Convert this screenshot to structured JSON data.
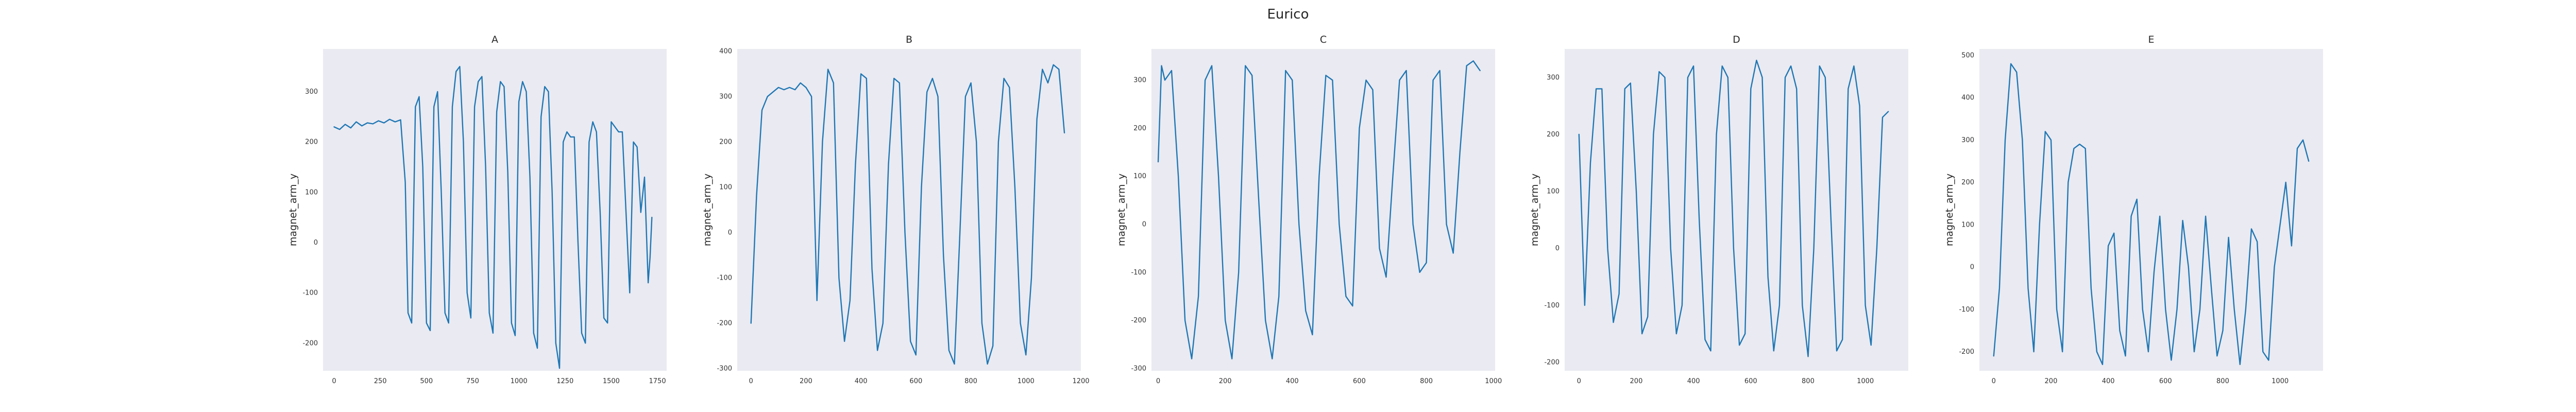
{
  "figure_title": "Eurico",
  "colors": {
    "background": "#ffffff",
    "axes_face": "#eaeaf2",
    "line": "#1f77b4",
    "text": "#262626"
  },
  "chart_data": [
    {
      "type": "line",
      "title": "A",
      "ylabel": "magnet_arm_y",
      "grid": false,
      "xlim": [
        -60,
        1800
      ],
      "ylim": [
        -255,
        385
      ],
      "xticks": [
        0,
        250,
        500,
        750,
        1000,
        1250,
        1500,
        1750
      ],
      "xtick_labels": [
        "0",
        "250",
        "500",
        "750",
        "1000",
        "1250",
        "1500",
        "1750"
      ],
      "yticks": [
        -200,
        -100,
        0,
        100,
        200,
        300
      ],
      "ytick_labels": [
        "-200",
        "-100",
        "0",
        "100",
        "200",
        "300"
      ],
      "series": [
        {
          "x": [
            0,
            30,
            60,
            90,
            120,
            150,
            180,
            210,
            240,
            270,
            300,
            330,
            360,
            385,
            400,
            420,
            440,
            460,
            480,
            500,
            520,
            540,
            560,
            580,
            600,
            620,
            640,
            660,
            680,
            700,
            720,
            740,
            760,
            780,
            800,
            820,
            840,
            860,
            880,
            900,
            920,
            940,
            960,
            980,
            1000,
            1020,
            1040,
            1060,
            1080,
            1100,
            1120,
            1140,
            1160,
            1180,
            1200,
            1220,
            1240,
            1260,
            1280,
            1300,
            1320,
            1340,
            1360,
            1380,
            1400,
            1420,
            1440,
            1460,
            1480,
            1500,
            1520,
            1540,
            1560,
            1580,
            1600,
            1620,
            1640,
            1660,
            1680,
            1700,
            1710,
            1720
          ],
          "y": [
            230,
            225,
            235,
            228,
            240,
            232,
            238,
            236,
            242,
            238,
            245,
            240,
            244,
            120,
            -140,
            -160,
            270,
            290,
            150,
            -160,
            -175,
            270,
            300,
            100,
            -140,
            -160,
            270,
            340,
            350,
            200,
            -100,
            -150,
            270,
            320,
            330,
            150,
            -140,
            -180,
            260,
            320,
            310,
            140,
            -160,
            -185,
            280,
            320,
            300,
            130,
            -180,
            -210,
            250,
            310,
            300,
            100,
            -200,
            -250,
            200,
            220,
            210,
            210,
            0,
            -180,
            -200,
            200,
            240,
            220,
            60,
            -150,
            -160,
            240,
            230,
            220,
            220,
            60,
            -100,
            200,
            190,
            60,
            130,
            -80,
            -30,
            50
          ]
        }
      ]
    },
    {
      "type": "line",
      "title": "B",
      "ylabel": "magnet_arm_y",
      "grid": false,
      "xlim": [
        -50,
        1200
      ],
      "ylim": [
        -305,
        405
      ],
      "xticks": [
        0,
        200,
        400,
        600,
        800,
        1000,
        1200
      ],
      "xtick_labels": [
        "0",
        "200",
        "400",
        "600",
        "800",
        "1000",
        "1200"
      ],
      "yticks": [
        -300,
        -200,
        -100,
        0,
        100,
        200,
        300,
        400
      ],
      "ytick_labels": [
        "-300",
        "-200",
        "-100",
        "0",
        "100",
        "200",
        "300",
        "400"
      ],
      "series": [
        {
          "x": [
            0,
            20,
            40,
            60,
            80,
            100,
            120,
            140,
            160,
            180,
            200,
            220,
            240,
            260,
            280,
            300,
            320,
            340,
            360,
            380,
            400,
            420,
            440,
            460,
            480,
            500,
            520,
            540,
            560,
            580,
            600,
            620,
            640,
            660,
            680,
            700,
            720,
            740,
            760,
            780,
            800,
            820,
            840,
            860,
            880,
            900,
            920,
            940,
            960,
            980,
            1000,
            1020,
            1040,
            1060,
            1080,
            1100,
            1120,
            1140
          ],
          "y": [
            -200,
            80,
            270,
            300,
            310,
            320,
            315,
            320,
            315,
            330,
            320,
            300,
            -150,
            200,
            360,
            330,
            -100,
            -240,
            -150,
            150,
            350,
            340,
            -80,
            -260,
            -200,
            150,
            340,
            330,
            0,
            -240,
            -270,
            100,
            310,
            340,
            300,
            -50,
            -260,
            -290,
            0,
            300,
            330,
            200,
            -200,
            -290,
            -250,
            200,
            340,
            320,
            100,
            -200,
            -270,
            -100,
            250,
            360,
            330,
            370,
            360,
            220
          ]
        }
      ]
    },
    {
      "type": "line",
      "title": "C",
      "ylabel": "magnet_arm_y",
      "grid": false,
      "xlim": [
        -20,
        1005
      ],
      "ylim": [
        -305,
        365
      ],
      "xticks": [
        0,
        200,
        400,
        600,
        800,
        1000
      ],
      "xtick_labels": [
        "0",
        "200",
        "400",
        "600",
        "800",
        "1000"
      ],
      "yticks": [
        -300,
        -200,
        -100,
        0,
        100,
        200,
        300
      ],
      "ytick_labels": [
        "-300",
        "-200",
        "-100",
        "0",
        "100",
        "200",
        "300"
      ],
      "series": [
        {
          "x": [
            0,
            10,
            20,
            40,
            60,
            80,
            100,
            120,
            140,
            160,
            180,
            200,
            220,
            240,
            260,
            280,
            300,
            320,
            340,
            360,
            380,
            400,
            420,
            440,
            460,
            480,
            500,
            520,
            540,
            560,
            580,
            600,
            620,
            640,
            660,
            680,
            700,
            720,
            740,
            760,
            780,
            800,
            820,
            840,
            860,
            880,
            900,
            920,
            940,
            960
          ],
          "y": [
            130,
            330,
            300,
            320,
            100,
            -200,
            -280,
            -150,
            300,
            330,
            100,
            -200,
            -280,
            -100,
            330,
            310,
            50,
            -200,
            -280,
            -150,
            320,
            300,
            0,
            -180,
            -230,
            100,
            310,
            300,
            0,
            -150,
            -170,
            200,
            300,
            280,
            -50,
            -110,
            100,
            300,
            320,
            0,
            -100,
            -80,
            300,
            320,
            0,
            -60,
            150,
            330,
            340,
            320
          ]
        }
      ]
    },
    {
      "type": "line",
      "title": "D",
      "ylabel": "magnet_arm_y",
      "grid": false,
      "xlim": [
        -50,
        1150
      ],
      "ylim": [
        -215,
        350
      ],
      "xticks": [
        0,
        200,
        400,
        600,
        800,
        1000
      ],
      "xtick_labels": [
        "0",
        "200",
        "400",
        "600",
        "800",
        "1000"
      ],
      "yticks": [
        -200,
        -100,
        0,
        100,
        200,
        300
      ],
      "ytick_labels": [
        "-200",
        "-100",
        "0",
        "100",
        "200",
        "300"
      ],
      "series": [
        {
          "x": [
            0,
            20,
            40,
            60,
            80,
            100,
            120,
            140,
            160,
            180,
            200,
            220,
            240,
            260,
            280,
            300,
            320,
            340,
            360,
            380,
            400,
            420,
            440,
            460,
            480,
            500,
            520,
            540,
            560,
            580,
            600,
            620,
            640,
            660,
            680,
            700,
            720,
            740,
            760,
            780,
            800,
            820,
            840,
            860,
            880,
            900,
            920,
            940,
            960,
            980,
            1000,
            1020,
            1040,
            1060,
            1080
          ],
          "y": [
            200,
            -100,
            150,
            280,
            280,
            0,
            -130,
            -80,
            280,
            290,
            100,
            -150,
            -120,
            200,
            310,
            300,
            0,
            -150,
            -100,
            300,
            320,
            50,
            -160,
            -180,
            200,
            320,
            300,
            0,
            -170,
            -150,
            280,
            330,
            300,
            -50,
            -180,
            -100,
            300,
            320,
            280,
            -100,
            -190,
            0,
            320,
            300,
            50,
            -180,
            -160,
            280,
            320,
            250,
            -100,
            -170,
            0,
            230,
            240
          ]
        }
      ]
    },
    {
      "type": "line",
      "title": "E",
      "ylabel": "magnet_arm_y",
      "grid": false,
      "xlim": [
        -50,
        1150
      ],
      "ylim": [
        -245,
        515
      ],
      "xticks": [
        0,
        200,
        400,
        600,
        800,
        1000
      ],
      "xtick_labels": [
        "0",
        "200",
        "400",
        "600",
        "800",
        "1000"
      ],
      "yticks": [
        -200,
        -100,
        0,
        100,
        200,
        300,
        400,
        500
      ],
      "ytick_labels": [
        "-200",
        "-100",
        "0",
        "100",
        "200",
        "300",
        "400",
        "500"
      ],
      "series": [
        {
          "x": [
            0,
            20,
            40,
            60,
            80,
            100,
            120,
            140,
            160,
            180,
            200,
            220,
            240,
            260,
            280,
            300,
            320,
            340,
            360,
            380,
            400,
            420,
            440,
            460,
            480,
            500,
            520,
            540,
            560,
            580,
            600,
            620,
            640,
            660,
            680,
            700,
            720,
            740,
            760,
            780,
            800,
            820,
            840,
            860,
            880,
            900,
            920,
            940,
            960,
            980,
            1000,
            1020,
            1040,
            1060,
            1080,
            1100
          ],
          "y": [
            -210,
            -50,
            300,
            480,
            460,
            300,
            -50,
            -200,
            100,
            320,
            300,
            -100,
            -200,
            200,
            280,
            290,
            280,
            -50,
            -200,
            -230,
            50,
            80,
            -150,
            -210,
            120,
            160,
            -100,
            -200,
            -10,
            120,
            -100,
            -220,
            -100,
            110,
            0,
            -200,
            -100,
            120,
            -50,
            -210,
            -150,
            70,
            -100,
            -230,
            -100,
            90,
            60,
            -200,
            -220,
            0,
            100,
            200,
            50,
            280,
            300,
            250
          ]
        }
      ]
    }
  ]
}
